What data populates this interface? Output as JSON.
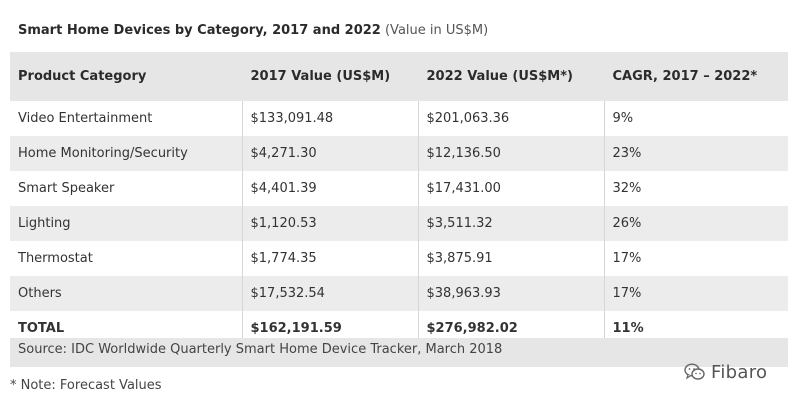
{
  "chart_data": {
    "type": "table",
    "title": "Smart Home Devices by Category, 2017 and 2022",
    "subtitle": "(Value in US$M)",
    "columns": [
      "Product Category",
      "2017 Value (US$M)",
      "2022 Value (US$M*)",
      "CAGR, 2017 – 2022*"
    ],
    "rows": [
      [
        "Video Entertainment",
        "$133,091.48",
        "$201,063.36",
        "9%"
      ],
      [
        "Home Monitoring/Security",
        "$4,271.30",
        "$12,136.50",
        "23%"
      ],
      [
        "Smart Speaker",
        "$4,401.39",
        "$17,431.00",
        "32%"
      ],
      [
        "Lighting",
        "$1,120.53",
        "$3,511.32",
        "26%"
      ],
      [
        "Thermostat",
        "$1,774.35",
        "$3,875.91",
        "17%"
      ],
      [
        "Others",
        "$17,532.54",
        "$38,963.93",
        "17%"
      ]
    ],
    "total": [
      "TOTAL",
      "$162,191.59",
      "$276,982.02",
      "11%"
    ],
    "source": "Source: IDC Worldwide Quarterly Smart Home Device Tracker, March 2018"
  },
  "note": "* Note: Forecast Values",
  "brand": {
    "name": "Fibaro",
    "icon": "wechat-icon",
    "color": "#555555"
  }
}
